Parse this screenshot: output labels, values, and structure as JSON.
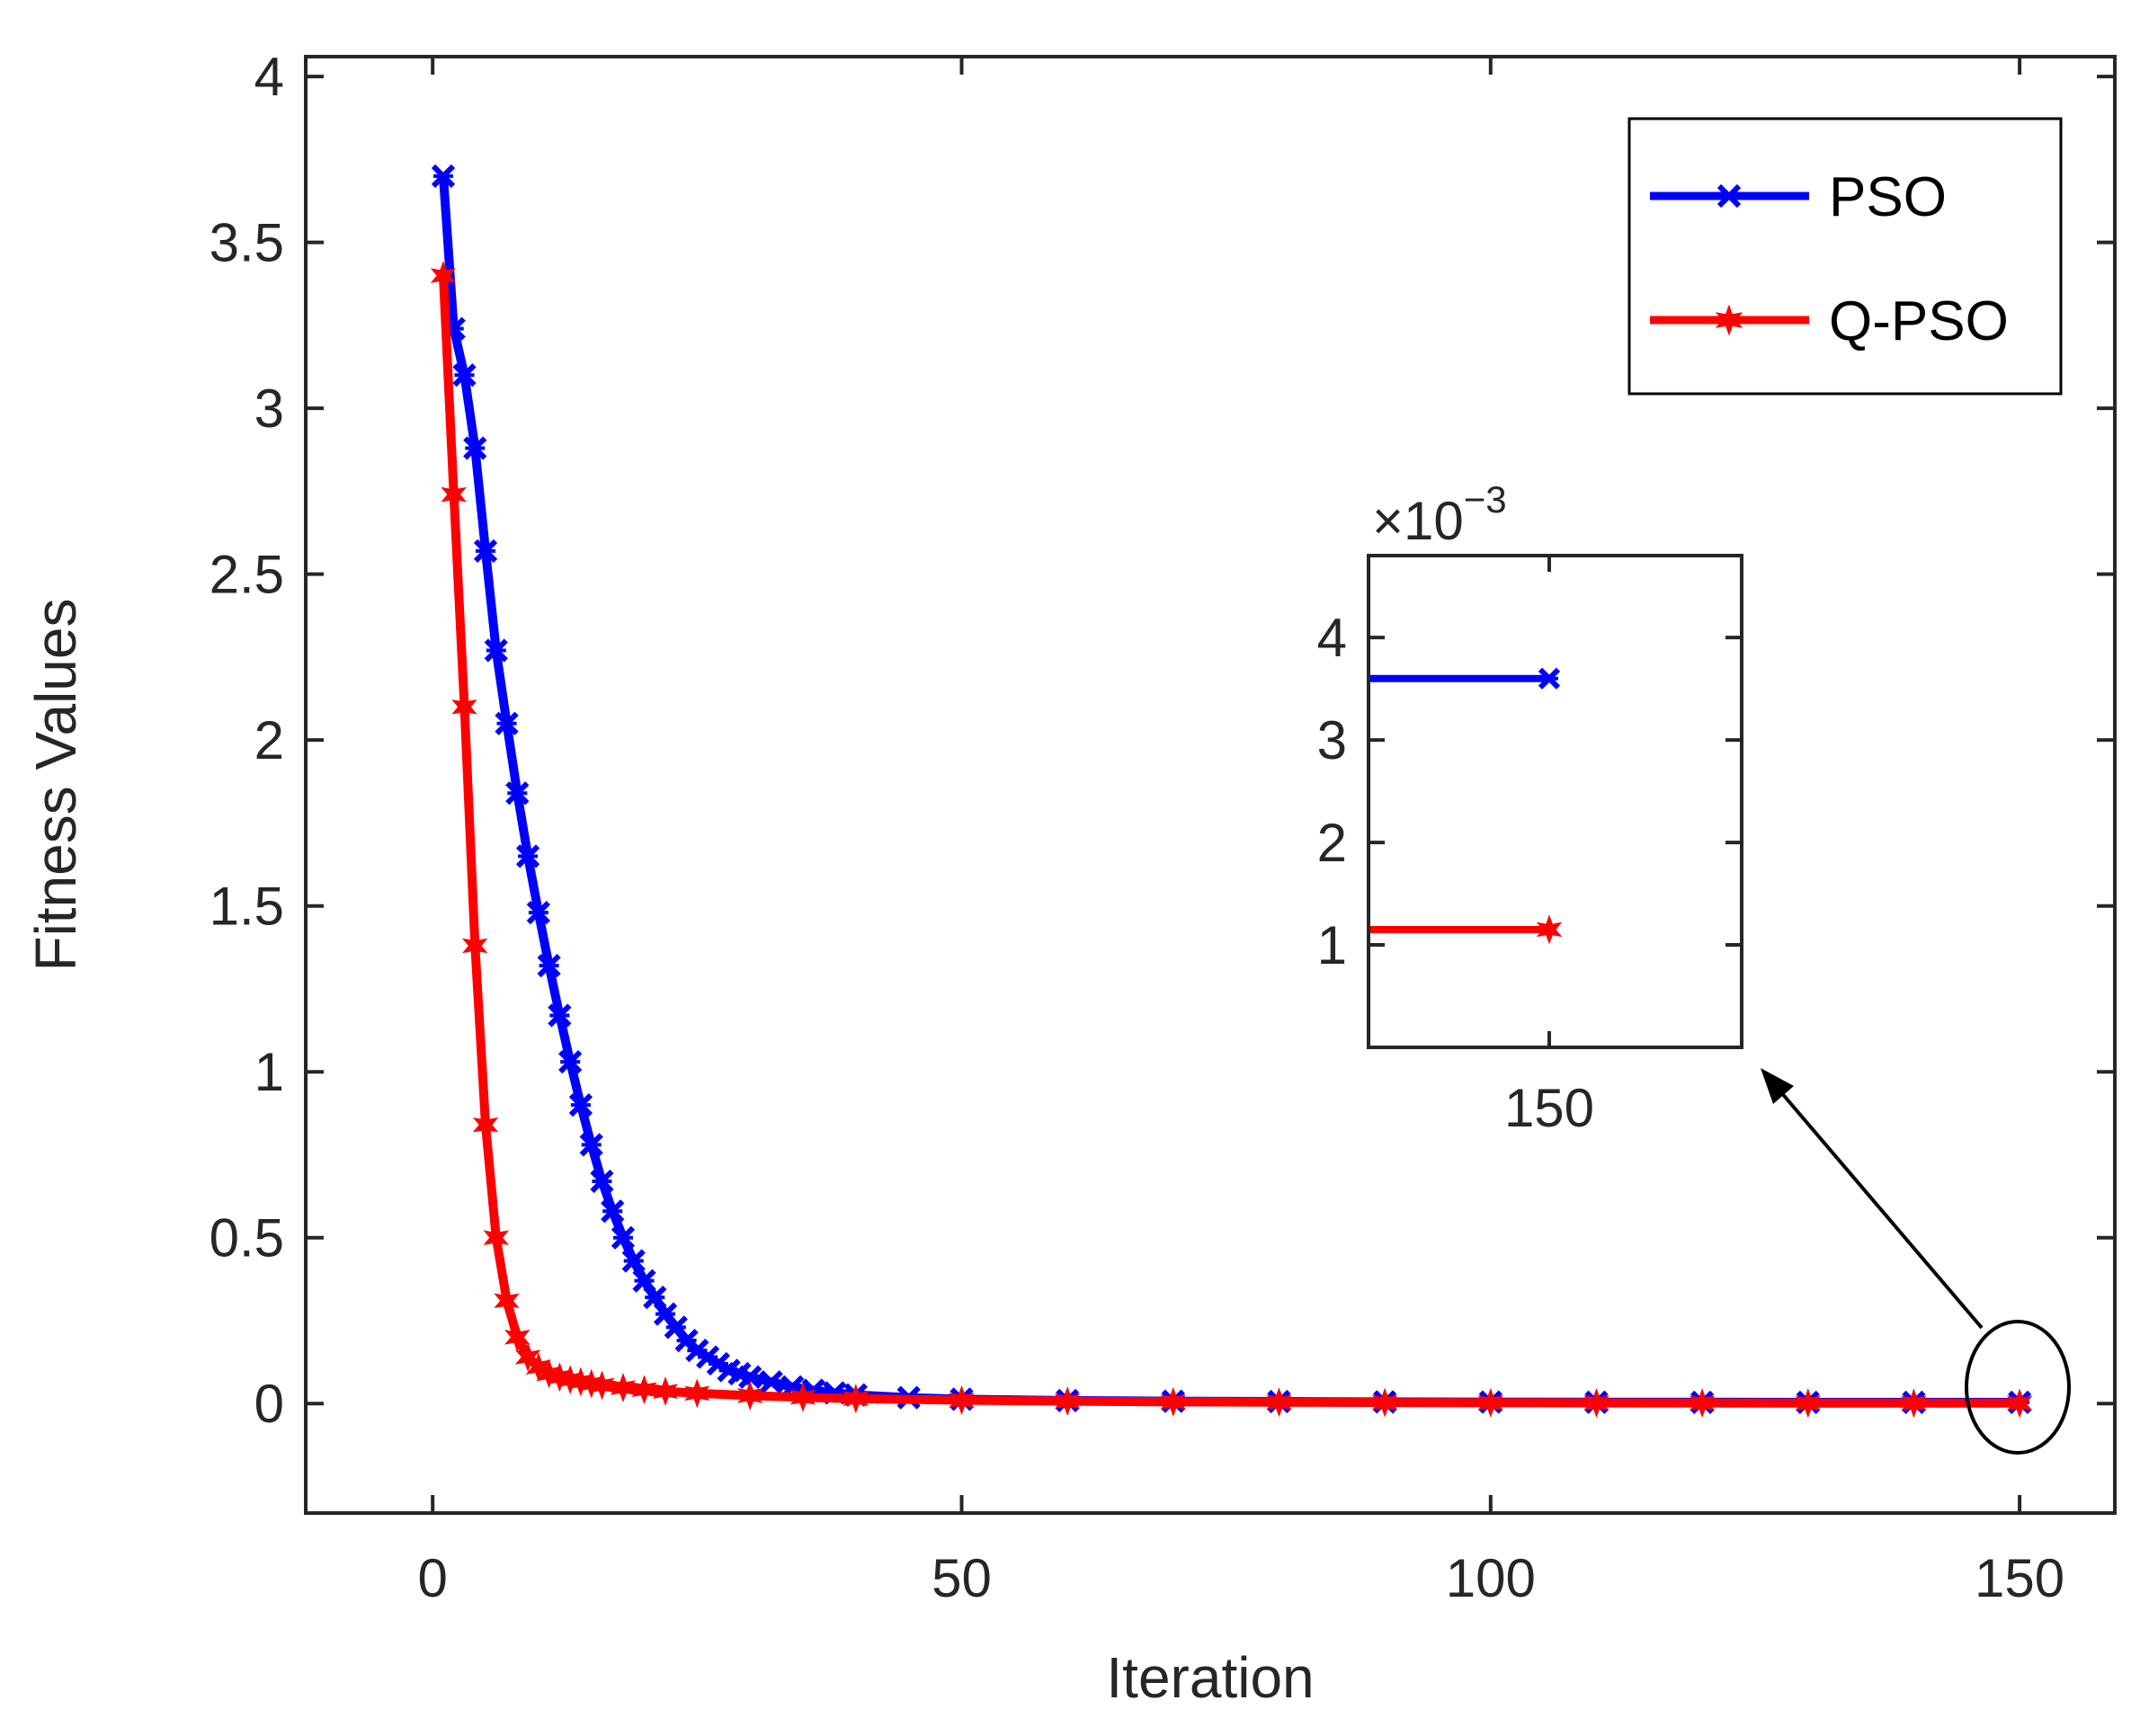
{
  "colors": {
    "pso": "#0000ff",
    "qpso": "#ff0000",
    "axis": "#262626",
    "annotation": "#000000"
  },
  "chart_data": {
    "type": "line",
    "title": "",
    "xlabel": "Iteration",
    "ylabel": "Fitness Values",
    "xlim": [
      -12,
      159
    ],
    "ylim": [
      -0.33,
      4.06
    ],
    "x_ticks": [
      0,
      50,
      100,
      150
    ],
    "x_tick_labels": [
      "0",
      "50",
      "100",
      "150"
    ],
    "y_ticks": [
      0,
      0.5,
      1,
      1.5,
      2,
      2.5,
      3,
      3.5,
      4
    ],
    "y_tick_labels": [
      "0",
      "0.5",
      "1",
      "1.5",
      "2",
      "2.5",
      "3",
      "3.5",
      "4"
    ],
    "grid": false,
    "legend_position": "top-right",
    "series": [
      {
        "name": "PSO",
        "marker": "x",
        "x": [
          1,
          2,
          3,
          4,
          5,
          6,
          7,
          8,
          9,
          10,
          11,
          12,
          13,
          14,
          15,
          16,
          17,
          18,
          19,
          20,
          21,
          22,
          23,
          24,
          25,
          26,
          27,
          28,
          29,
          30,
          32,
          34,
          36,
          38,
          40,
          45,
          50,
          60,
          70,
          80,
          90,
          100,
          110,
          120,
          130,
          140,
          150
        ],
        "values": [
          3.7,
          3.24,
          3.1,
          2.88,
          2.57,
          2.27,
          2.05,
          1.84,
          1.65,
          1.48,
          1.32,
          1.17,
          1.03,
          0.9,
          0.78,
          0.67,
          0.58,
          0.5,
          0.43,
          0.37,
          0.32,
          0.27,
          0.23,
          0.19,
          0.16,
          0.14,
          0.12,
          0.1,
          0.09,
          0.08,
          0.065,
          0.05,
          0.04,
          0.032,
          0.026,
          0.018,
          0.013,
          0.009,
          0.007,
          0.006,
          0.005,
          0.0045,
          0.004,
          0.0038,
          0.0037,
          0.0036,
          0.0036
        ]
      },
      {
        "name": "Q-PSO",
        "marker": "star",
        "x": [
          1,
          2,
          3,
          4,
          5,
          6,
          7,
          8,
          9,
          10,
          11,
          12,
          13,
          14,
          15,
          16,
          18,
          20,
          22,
          25,
          30,
          35,
          40,
          50,
          60,
          70,
          80,
          90,
          100,
          110,
          120,
          130,
          140,
          150
        ],
        "values": [
          3.4,
          2.74,
          2.1,
          1.38,
          0.84,
          0.5,
          0.31,
          0.2,
          0.14,
          0.11,
          0.09,
          0.08,
          0.072,
          0.066,
          0.06,
          0.055,
          0.048,
          0.042,
          0.037,
          0.031,
          0.024,
          0.019,
          0.015,
          0.01,
          0.007,
          0.005,
          0.004,
          0.003,
          0.0025,
          0.002,
          0.0016,
          0.0013,
          0.0012,
          0.0011
        ]
      }
    ],
    "inset": {
      "exponent_label": "×10",
      "exponent": "−3",
      "x_tick_labels": [
        "150"
      ],
      "y_tick_labels": [
        "1",
        "2",
        "3",
        "4"
      ],
      "y_ticks": [
        1,
        2,
        3,
        4
      ],
      "ylim": [
        0,
        4.8
      ],
      "x_value": 150,
      "series": [
        {
          "name": "PSO",
          "value": 3.6
        },
        {
          "name": "Q-PSO",
          "value": 1.15
        }
      ]
    }
  }
}
